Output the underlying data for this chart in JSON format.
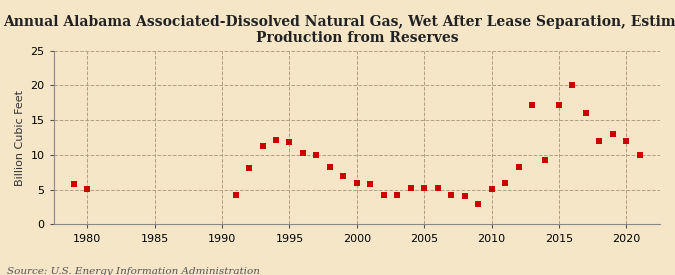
{
  "title": "Annual Alabama Associated-Dissolved Natural Gas, Wet After Lease Separation, Estimated\nProduction from Reserves",
  "ylabel": "Billion Cubic Feet",
  "source": "Source: U.S. Energy Information Administration",
  "background_color": "#f5e6c8",
  "plot_bg_color": "#f5e6c8",
  "marker_color": "#cc0000",
  "marker": "s",
  "marker_size": 4,
  "xlim": [
    1977.5,
    2022.5
  ],
  "ylim": [
    0,
    25
  ],
  "yticks": [
    0,
    5,
    10,
    15,
    20,
    25
  ],
  "xticks": [
    1980,
    1985,
    1990,
    1995,
    2000,
    2005,
    2010,
    2015,
    2020
  ],
  "years": [
    1979,
    1980,
    1991,
    1992,
    1993,
    1994,
    1995,
    1996,
    1997,
    1998,
    1999,
    2000,
    2001,
    2002,
    2003,
    2004,
    2005,
    2006,
    2007,
    2008,
    2009,
    2010,
    2011,
    2012,
    2013,
    2014,
    2015,
    2016,
    2017,
    2018,
    2019,
    2020,
    2021
  ],
  "values": [
    5.8,
    5.1,
    4.2,
    8.1,
    11.3,
    12.1,
    11.9,
    10.3,
    10.0,
    8.3,
    7.0,
    6.0,
    5.8,
    4.2,
    4.2,
    5.2,
    5.2,
    5.2,
    4.2,
    4.1,
    3.0,
    5.1,
    6.0,
    8.2,
    17.2,
    9.2,
    17.2,
    20.0,
    16.0,
    12.0,
    13.0,
    12.0,
    10.0
  ],
  "grid_color": "#b0a080",
  "grid_style": "--",
  "title_fontsize": 10,
  "label_fontsize": 8,
  "tick_fontsize": 8,
  "source_fontsize": 7.5
}
